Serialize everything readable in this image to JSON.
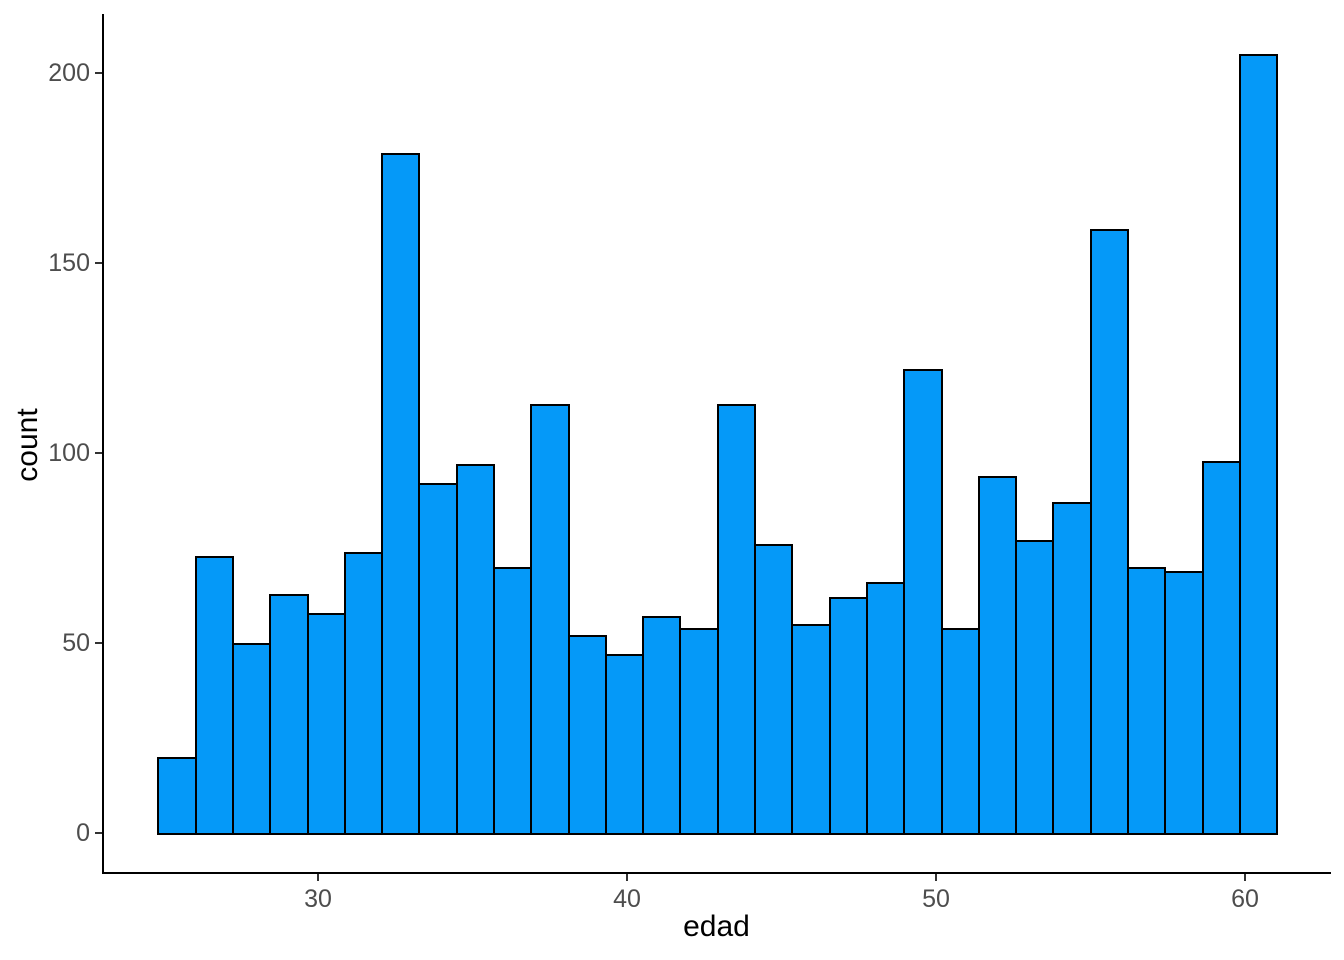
{
  "figure": {
    "background": "#ffffff"
  },
  "chart_data": {
    "type": "bar",
    "subtype": "histogram",
    "title": "",
    "xlabel": "edad",
    "ylabel": "count",
    "bin_start": 24.8,
    "binwidth": 1.207,
    "counts": [
      20,
      73,
      50,
      63,
      58,
      74,
      179,
      92,
      97,
      70,
      113,
      52,
      47,
      57,
      54,
      113,
      76,
      55,
      62,
      66,
      122,
      54,
      94,
      77,
      87,
      159,
      70,
      69,
      98,
      205
    ],
    "x_ticks": [
      30,
      40,
      50,
      60
    ],
    "y_ticks": [
      0,
      50,
      100,
      150,
      200
    ],
    "xlim": [
      23.0,
      62.9
    ],
    "ylim": [
      -10.3,
      215.5
    ],
    "grid": false,
    "legend_position": "none",
    "bar_fill": "#0599F8",
    "bar_stroke": "#000000",
    "axis_line_color": "#000000",
    "tick_mark_color": "#333333",
    "axis_text_color": "#4D4D4D",
    "axis_title_color": "#000000"
  }
}
